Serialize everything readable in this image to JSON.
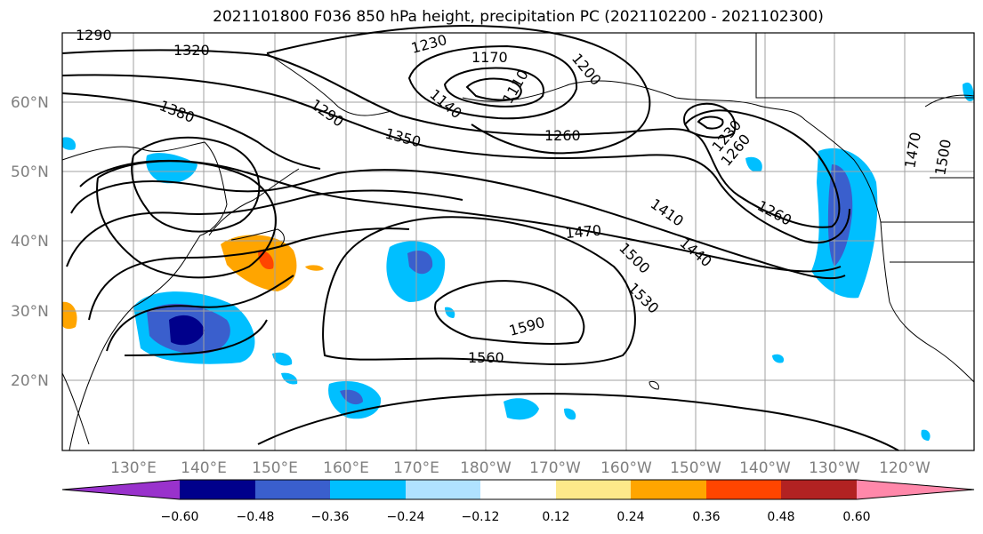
{
  "title": "2021101800 F036 850 hPa height, precipitation PC (2021102200 - 2021102300)",
  "map": {
    "lat_labels": [
      "60°N",
      "50°N",
      "40°N",
      "30°N",
      "20°N"
    ],
    "lon_labels": [
      "130°E",
      "140°E",
      "150°E",
      "160°E",
      "170°E",
      "180°W",
      "170°W",
      "160°W",
      "150°W",
      "140°W",
      "130°W",
      "120°W"
    ],
    "height_contours": [
      "1290",
      "1320",
      "1380",
      "1230",
      "1170",
      "1200",
      "1140",
      "1110",
      "1290",
      "1350",
      "1260",
      "1230",
      "1260",
      "1260",
      "1470",
      "1500",
      "1470",
      "1410",
      "1440",
      "1500",
      "1530",
      "1590",
      "1560"
    ]
  },
  "colorbar": {
    "ticks": [
      "−0.60",
      "−0.48",
      "−0.36",
      "−0.24",
      "−0.12",
      "0.12",
      "0.24",
      "0.36",
      "0.48",
      "0.60"
    ],
    "colors": [
      "#9932cc",
      "#00008b",
      "#3a5fcd",
      "#00bfff",
      "#b0e2ff",
      "#ffffff",
      "#fde98a",
      "#ffa500",
      "#ff4500",
      "#b22222",
      "#ff88aa"
    ]
  }
}
